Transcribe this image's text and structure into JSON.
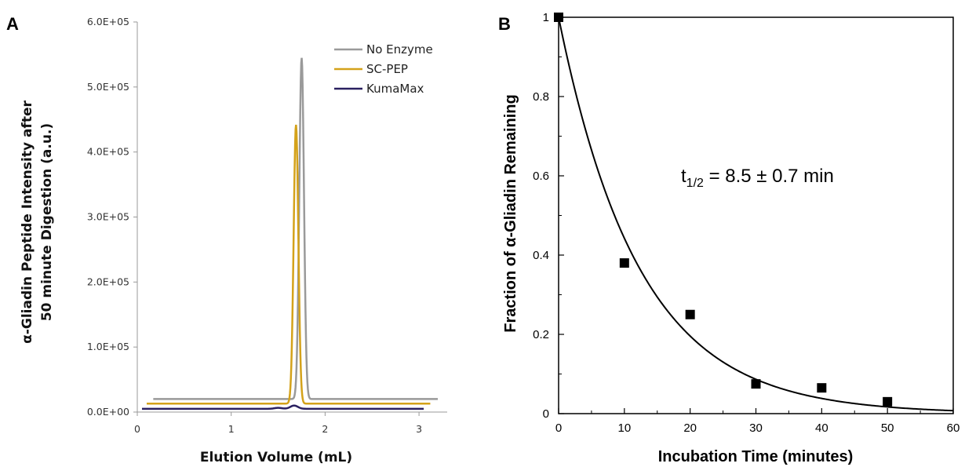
{
  "chart_data": [
    {
      "panel": "A",
      "type": "line",
      "xlabel": "Elution Volume (mL)",
      "ylabel_line1": "α-Gliadin Peptide Intensity after",
      "ylabel_line2": "50 minute Digestion (a.u.)",
      "xlim": [
        0,
        3.3
      ],
      "ylim": [
        0,
        600000
      ],
      "xticks": [
        0,
        1,
        2,
        3
      ],
      "xtick_labels": [
        "0",
        "1",
        "2",
        "3"
      ],
      "yticks": [
        0,
        100000,
        200000,
        300000,
        400000,
        500000,
        600000
      ],
      "ytick_labels": [
        "0.0E+00",
        "1.0E+05",
        "2.0E+05",
        "3.0E+05",
        "4.0E+05",
        "5.0E+05",
        "6.0E+05"
      ],
      "legend_position": "top-right",
      "series": [
        {
          "name": "No Enzyme",
          "color": "#9a9a9a",
          "baseline": 20000,
          "peak_x": 1.75,
          "peak_y": 545000,
          "x_start": 0.17,
          "x_end": 3.2
        },
        {
          "name": "SC-PEP",
          "color": "#d4a21a",
          "baseline": 13000,
          "peak_x": 1.69,
          "peak_y": 442000,
          "x_start": 0.1,
          "x_end": 3.12
        },
        {
          "name": "KumaMax",
          "color": "#2a2060",
          "baseline": 5000,
          "peak_x": 1.67,
          "peak_y": 10000,
          "x_start": 0.05,
          "x_end": 3.05
        }
      ]
    },
    {
      "panel": "B",
      "type": "scatter",
      "xlabel": "Incubation Time (minutes)",
      "ylabel": "Fraction of α-Gliadin Remaining",
      "xlim": [
        0,
        60
      ],
      "ylim": [
        0,
        1
      ],
      "xticks": [
        0,
        10,
        20,
        30,
        40,
        50,
        60
      ],
      "xtick_labels": [
        "0",
        "10",
        "20",
        "30",
        "40",
        "50",
        "60"
      ],
      "yticks": [
        0,
        0.2,
        0.4,
        0.6,
        0.8,
        1
      ],
      "ytick_labels": [
        "0",
        "0.2",
        "0.4",
        "0.6",
        "0.8",
        "1"
      ],
      "points": [
        {
          "x": 0,
          "y": 1.0
        },
        {
          "x": 10,
          "y": 0.38
        },
        {
          "x": 20,
          "y": 0.25
        },
        {
          "x": 30,
          "y": 0.075
        },
        {
          "x": 40,
          "y": 0.065
        },
        {
          "x": 50,
          "y": 0.03
        }
      ],
      "fit": {
        "model": "exponential decay",
        "half_life_min": 8.5
      },
      "annotation_prefix": "t",
      "annotation_subscript": "1/2",
      "annotation_value": " = 8.5 ± 0.7 min"
    }
  ],
  "panels": {
    "a_letter": "A",
    "b_letter": "B"
  }
}
